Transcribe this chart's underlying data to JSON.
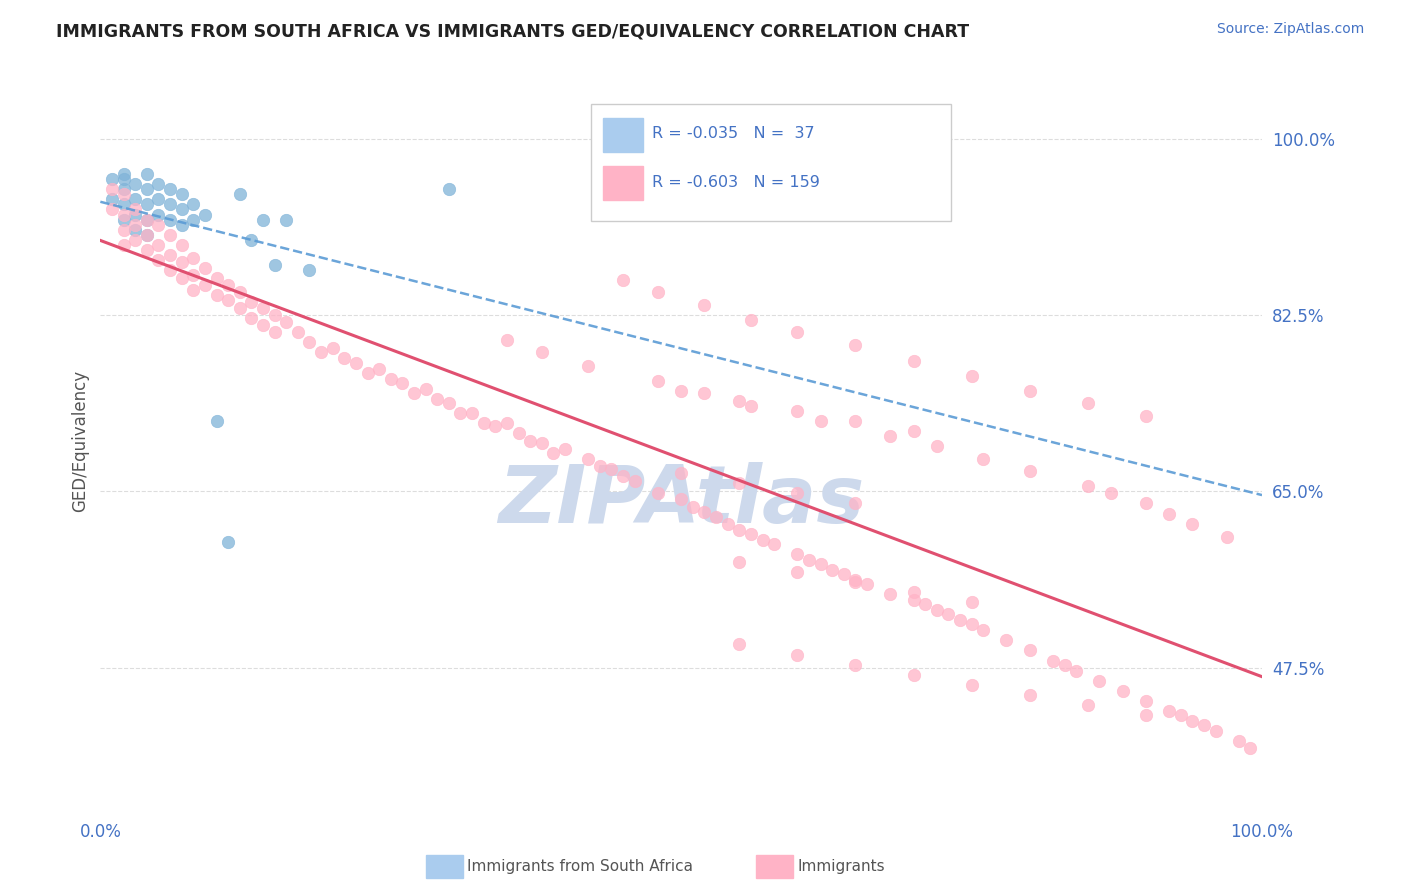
{
  "title": "IMMIGRANTS FROM SOUTH AFRICA VS IMMIGRANTS GED/EQUIVALENCY CORRELATION CHART",
  "source_text": "Source: ZipAtlas.com",
  "ylabel": "GED/Equivalency",
  "legend_label_blue": "Immigrants from South Africa",
  "legend_label_pink": "Immigrants",
  "legend_R_blue": "-0.035",
  "legend_N_blue": "37",
  "legend_R_pink": "-0.603",
  "legend_N_pink": "159",
  "xlim": [
    0.0,
    1.0
  ],
  "ylim": [
    0.33,
    1.07
  ],
  "xtick_labels": [
    "0.0%",
    "100.0%"
  ],
  "ytick_values": [
    0.475,
    0.65,
    0.825,
    1.0
  ],
  "ytick_labels": [
    "47.5%",
    "65.0%",
    "82.5%",
    "100.0%"
  ],
  "watermark": "ZIPAtlas",
  "blue_scatter_x": [
    0.01,
    0.01,
    0.02,
    0.02,
    0.02,
    0.02,
    0.02,
    0.03,
    0.03,
    0.03,
    0.03,
    0.04,
    0.04,
    0.04,
    0.04,
    0.04,
    0.05,
    0.05,
    0.05,
    0.06,
    0.06,
    0.06,
    0.07,
    0.07,
    0.07,
    0.08,
    0.08,
    0.09,
    0.1,
    0.11,
    0.12,
    0.13,
    0.14,
    0.15,
    0.16,
    0.18,
    0.3
  ],
  "blue_scatter_y": [
    0.96,
    0.94,
    0.965,
    0.95,
    0.935,
    0.92,
    0.96,
    0.955,
    0.94,
    0.925,
    0.91,
    0.965,
    0.95,
    0.935,
    0.92,
    0.905,
    0.955,
    0.94,
    0.925,
    0.95,
    0.935,
    0.92,
    0.945,
    0.93,
    0.915,
    0.935,
    0.92,
    0.925,
    0.72,
    0.6,
    0.945,
    0.9,
    0.92,
    0.875,
    0.92,
    0.87,
    0.95
  ],
  "pink_scatter_x": [
    0.01,
    0.01,
    0.02,
    0.02,
    0.02,
    0.02,
    0.03,
    0.03,
    0.03,
    0.04,
    0.04,
    0.04,
    0.05,
    0.05,
    0.05,
    0.06,
    0.06,
    0.06,
    0.07,
    0.07,
    0.07,
    0.08,
    0.08,
    0.08,
    0.09,
    0.09,
    0.1,
    0.1,
    0.11,
    0.11,
    0.12,
    0.12,
    0.13,
    0.13,
    0.14,
    0.14,
    0.15,
    0.15,
    0.16,
    0.17,
    0.18,
    0.19,
    0.2,
    0.21,
    0.22,
    0.23,
    0.24,
    0.25,
    0.26,
    0.27,
    0.28,
    0.29,
    0.3,
    0.31,
    0.32,
    0.33,
    0.34,
    0.35,
    0.36,
    0.37,
    0.38,
    0.39,
    0.4,
    0.42,
    0.43,
    0.44,
    0.45,
    0.46,
    0.48,
    0.5,
    0.51,
    0.52,
    0.53,
    0.54,
    0.55,
    0.56,
    0.57,
    0.58,
    0.6,
    0.61,
    0.62,
    0.63,
    0.64,
    0.65,
    0.66,
    0.68,
    0.7,
    0.71,
    0.72,
    0.73,
    0.74,
    0.75,
    0.76,
    0.78,
    0.8,
    0.82,
    0.83,
    0.84,
    0.86,
    0.88,
    0.9,
    0.92,
    0.93,
    0.94,
    0.96,
    0.98,
    0.99,
    0.5,
    0.55,
    0.6,
    0.65,
    0.7,
    0.35,
    0.38,
    0.42,
    0.48,
    0.52,
    0.56,
    0.62,
    0.68,
    0.72,
    0.76,
    0.8,
    0.85,
    0.87,
    0.9,
    0.92,
    0.94,
    0.97,
    0.45,
    0.48,
    0.52,
    0.56,
    0.6,
    0.65,
    0.7,
    0.75,
    0.8,
    0.85,
    0.9,
    0.55,
    0.6,
    0.65,
    0.7,
    0.75,
    0.55,
    0.6,
    0.65,
    0.7,
    0.75,
    0.8,
    0.85,
    0.9,
    0.95,
    0.5,
    0.55,
    0.6,
    0.65
  ],
  "pink_scatter_y": [
    0.95,
    0.93,
    0.945,
    0.925,
    0.91,
    0.895,
    0.93,
    0.915,
    0.9,
    0.92,
    0.905,
    0.89,
    0.915,
    0.895,
    0.88,
    0.905,
    0.885,
    0.87,
    0.895,
    0.878,
    0.862,
    0.882,
    0.865,
    0.85,
    0.872,
    0.855,
    0.862,
    0.845,
    0.855,
    0.84,
    0.848,
    0.832,
    0.838,
    0.822,
    0.832,
    0.815,
    0.825,
    0.808,
    0.818,
    0.808,
    0.798,
    0.788,
    0.792,
    0.782,
    0.778,
    0.768,
    0.772,
    0.762,
    0.758,
    0.748,
    0.752,
    0.742,
    0.738,
    0.728,
    0.728,
    0.718,
    0.715,
    0.718,
    0.708,
    0.7,
    0.698,
    0.688,
    0.692,
    0.682,
    0.675,
    0.672,
    0.665,
    0.66,
    0.648,
    0.642,
    0.635,
    0.63,
    0.625,
    0.618,
    0.612,
    0.608,
    0.602,
    0.598,
    0.588,
    0.582,
    0.578,
    0.572,
    0.568,
    0.562,
    0.558,
    0.548,
    0.542,
    0.538,
    0.532,
    0.528,
    0.522,
    0.518,
    0.512,
    0.502,
    0.492,
    0.482,
    0.478,
    0.472,
    0.462,
    0.452,
    0.442,
    0.432,
    0.428,
    0.422,
    0.412,
    0.402,
    0.395,
    0.75,
    0.74,
    0.73,
    0.72,
    0.71,
    0.8,
    0.788,
    0.775,
    0.76,
    0.748,
    0.735,
    0.72,
    0.705,
    0.695,
    0.682,
    0.67,
    0.655,
    0.648,
    0.638,
    0.628,
    0.618,
    0.605,
    0.86,
    0.848,
    0.835,
    0.82,
    0.808,
    0.795,
    0.78,
    0.765,
    0.75,
    0.738,
    0.725,
    0.58,
    0.57,
    0.56,
    0.55,
    0.54,
    0.498,
    0.488,
    0.478,
    0.468,
    0.458,
    0.448,
    0.438,
    0.428,
    0.418,
    0.668,
    0.658,
    0.648,
    0.638
  ],
  "bg_color": "#ffffff",
  "grid_color": "#dddddd",
  "blue_color": "#7fb3d8",
  "blue_line_color": "#5B9BD5",
  "pink_color": "#ffb3c6",
  "pink_line_color": "#e05070",
  "title_color": "#222222",
  "axis_label_color": "#555555",
  "tick_color": "#4472C4",
  "watermark_color": "#cdd9ec"
}
